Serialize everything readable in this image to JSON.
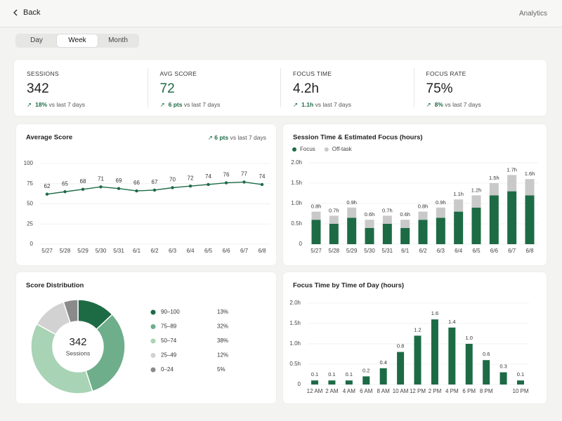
{
  "header": {
    "back": "Back",
    "title": "Analytics"
  },
  "tabs": {
    "items": [
      "Day",
      "Week",
      "Month"
    ],
    "active": 1
  },
  "kpis": [
    {
      "label": "SESSIONS",
      "value": "342",
      "delta": "18%",
      "note": "vs last 7 days"
    },
    {
      "label": "AVG SCORE",
      "value": "72",
      "value_color": "#1d6b45",
      "delta": "6 pts",
      "note": "vs last 7 days"
    },
    {
      "label": "FOCUS TIME",
      "value": "4.2h",
      "delta": "1.1h",
      "note": "vs last 7 days"
    },
    {
      "label": "FOCUS RATE",
      "value": "75%",
      "delta": "8%",
      "note": "vs last 7 days"
    }
  ],
  "chart_data": [
    {
      "type": "line",
      "title": "Average Score",
      "annotation": {
        "delta": "6 pts",
        "text": "vs last 7 days"
      },
      "categories": [
        "5/27",
        "5/28",
        "5/29",
        "5/30",
        "5/31",
        "6/1",
        "6/2",
        "6/3",
        "6/4",
        "6/5",
        "6/6",
        "6/7",
        "6/8"
      ],
      "values": [
        62,
        65,
        68,
        71,
        69,
        66,
        67,
        70,
        72,
        74,
        76,
        77,
        74
      ],
      "color": "#1d6b45",
      "ylim": [
        0,
        100
      ],
      "yticks": [
        0,
        25,
        50,
        75,
        100
      ],
      "grid": true
    },
    {
      "type": "stacked_bar",
      "title": "Session Time & Estimated Focus (hours)",
      "categories": [
        "5/27",
        "5/28",
        "5/29",
        "5/30",
        "5/31",
        "6/1",
        "6/2",
        "6/3",
        "6/4",
        "6/5",
        "6/6",
        "6/7",
        "6/8"
      ],
      "series": [
        {
          "name": "Focus",
          "color": "#1d6b45",
          "values": [
            0.6,
            0.5,
            0.65,
            0.4,
            0.5,
            0.4,
            0.6,
            0.65,
            0.8,
            0.9,
            1.2,
            1.3,
            1.2
          ]
        },
        {
          "name": "Off-task",
          "color": "#c9c9c9",
          "values": [
            0.2,
            0.2,
            0.25,
            0.2,
            0.2,
            0.2,
            0.2,
            0.25,
            0.3,
            0.3,
            0.3,
            0.4,
            0.4
          ]
        }
      ],
      "totals": {
        "values": [
          0.8,
          0.7,
          0.9,
          0.6,
          0.7,
          0.6,
          0.8,
          0.9,
          1.1,
          1.2,
          1.5,
          1.7,
          1.6
        ],
        "value_labels": [
          "0.8h",
          "0.7h",
          "0.9h",
          "0.6h",
          "0.7h",
          "0.6h",
          "0.8h",
          "0.9h",
          "1.1h",
          "1.2h",
          "1.5h",
          "1.7h",
          "1.6h"
        ]
      },
      "ylim": [
        0,
        2
      ],
      "yticks": [
        0,
        {
          "value": 0.5,
          "label": "0.5h"
        },
        {
          "value": 1,
          "label": "1.0h"
        },
        {
          "value": 1.5,
          "label": "1.5h"
        },
        {
          "value": 2,
          "label": "2.0h"
        }
      ],
      "grid": true,
      "legend": "top-left"
    },
    {
      "type": "pie",
      "donut": true,
      "title": "Score Distribution",
      "center_value": "342",
      "center_label": "Sessions",
      "categories": [
        "90–100",
        "75–89",
        "50–74",
        "25–49",
        "0–24"
      ],
      "values": [
        13,
        32,
        38,
        12,
        5
      ],
      "value_labels": [
        "13%",
        "32%",
        "38%",
        "12%",
        "5%"
      ],
      "colors": [
        "#1d6b45",
        "#6fae8a",
        "#a8d3b5",
        "#d2d2d2",
        "#8a8a8a"
      ],
      "legend": "right"
    },
    {
      "type": "bar",
      "title": "Focus Time by Time of Day (hours)",
      "categories": [
        "12 AM",
        "2 AM",
        "4 AM",
        "6 AM",
        "8 AM",
        "10 AM",
        "12 PM",
        "2 PM",
        "4 PM",
        "6 PM",
        "8 PM",
        null,
        "10 PM"
      ],
      "values": [
        0.1,
        0.1,
        0.1,
        0.2,
        0.4,
        0.8,
        1.2,
        1.6,
        1.4,
        1,
        0.6,
        0.3,
        0.1
      ],
      "value_labels": [
        "0.1",
        "0.1",
        "0.1",
        "0.2",
        "0.4",
        "0.8",
        "1.2",
        "1.6",
        "1.4",
        "1.0",
        "0.6",
        "0.3",
        "0.1"
      ],
      "color": "#1d6b45",
      "ylim": [
        0,
        2
      ],
      "yticks": [
        0,
        {
          "value": 0.5,
          "label": "0.5h"
        },
        {
          "value": 1,
          "label": "1.0h"
        },
        {
          "value": 1.5,
          "label": "1.5h"
        },
        {
          "value": 2,
          "label": "2.0h"
        }
      ],
      "grid": true
    }
  ]
}
